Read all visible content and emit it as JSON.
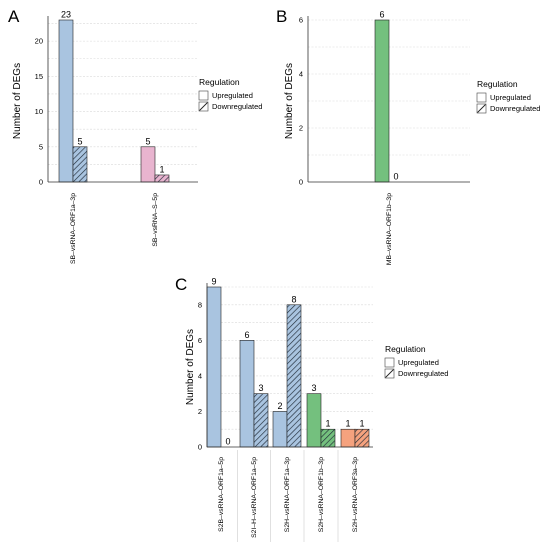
{
  "chart_data": [
    {
      "type": "bar",
      "panel": "A",
      "ylabel": "Number of DEGs",
      "ylim": [
        0,
        23
      ],
      "yticks": [
        0,
        5,
        10,
        15,
        20
      ],
      "categories": [
        "SB–vsRNA–ORF1a–3p",
        "SB–vsRNA–S–5p"
      ],
      "series": [
        {
          "name": "Upregulated",
          "values": [
            23,
            5
          ],
          "hatched": false
        },
        {
          "name": "Downregulated",
          "values": [
            5,
            1
          ],
          "hatched": true
        }
      ],
      "colors": [
        "#a9c4e0",
        "#e8b4cf"
      ],
      "legend": {
        "title": "Regulation",
        "position": "right"
      },
      "grid": true
    },
    {
      "type": "bar",
      "panel": "B",
      "ylabel": "Number of DEGs",
      "ylim": [
        0,
        6
      ],
      "yticks": [
        0,
        2,
        4,
        6
      ],
      "categories": [
        "MB–vsRNA–ORF1b–3p"
      ],
      "series": [
        {
          "name": "Upregulated",
          "values": [
            6
          ],
          "hatched": false
        },
        {
          "name": "Downregulated",
          "values": [
            0
          ],
          "hatched": true
        }
      ],
      "colors": [
        "#74c07e"
      ],
      "legend": {
        "title": "Regulation",
        "position": "right"
      },
      "grid": true
    },
    {
      "type": "bar",
      "panel": "C",
      "ylabel": "Number of DEGs",
      "ylim": [
        0,
        9
      ],
      "yticks": [
        0,
        2,
        4,
        6,
        8
      ],
      "categories": [
        "S2B–vsRNA–ORF1a–5p",
        "S2I–H–vsRNA–ORF1a–5p",
        "S2H–vsRNA–ORF1a–3p",
        "S2H–vsRNA–ORF1b–3p",
        "S2H–vsRNA–ORF3a–3p"
      ],
      "series": [
        {
          "name": "Upregulated",
          "values": [
            9,
            6,
            2,
            3,
            1
          ],
          "hatched": false
        },
        {
          "name": "Downregulated",
          "values": [
            0,
            3,
            8,
            1,
            1
          ],
          "hatched": true
        }
      ],
      "colors": [
        "#a9c4e0",
        "#a9c4e0",
        "#a9c4e0",
        "#74c07e",
        "#f5a27e"
      ],
      "legend": {
        "title": "Regulation",
        "position": "right"
      },
      "grid": true
    }
  ]
}
